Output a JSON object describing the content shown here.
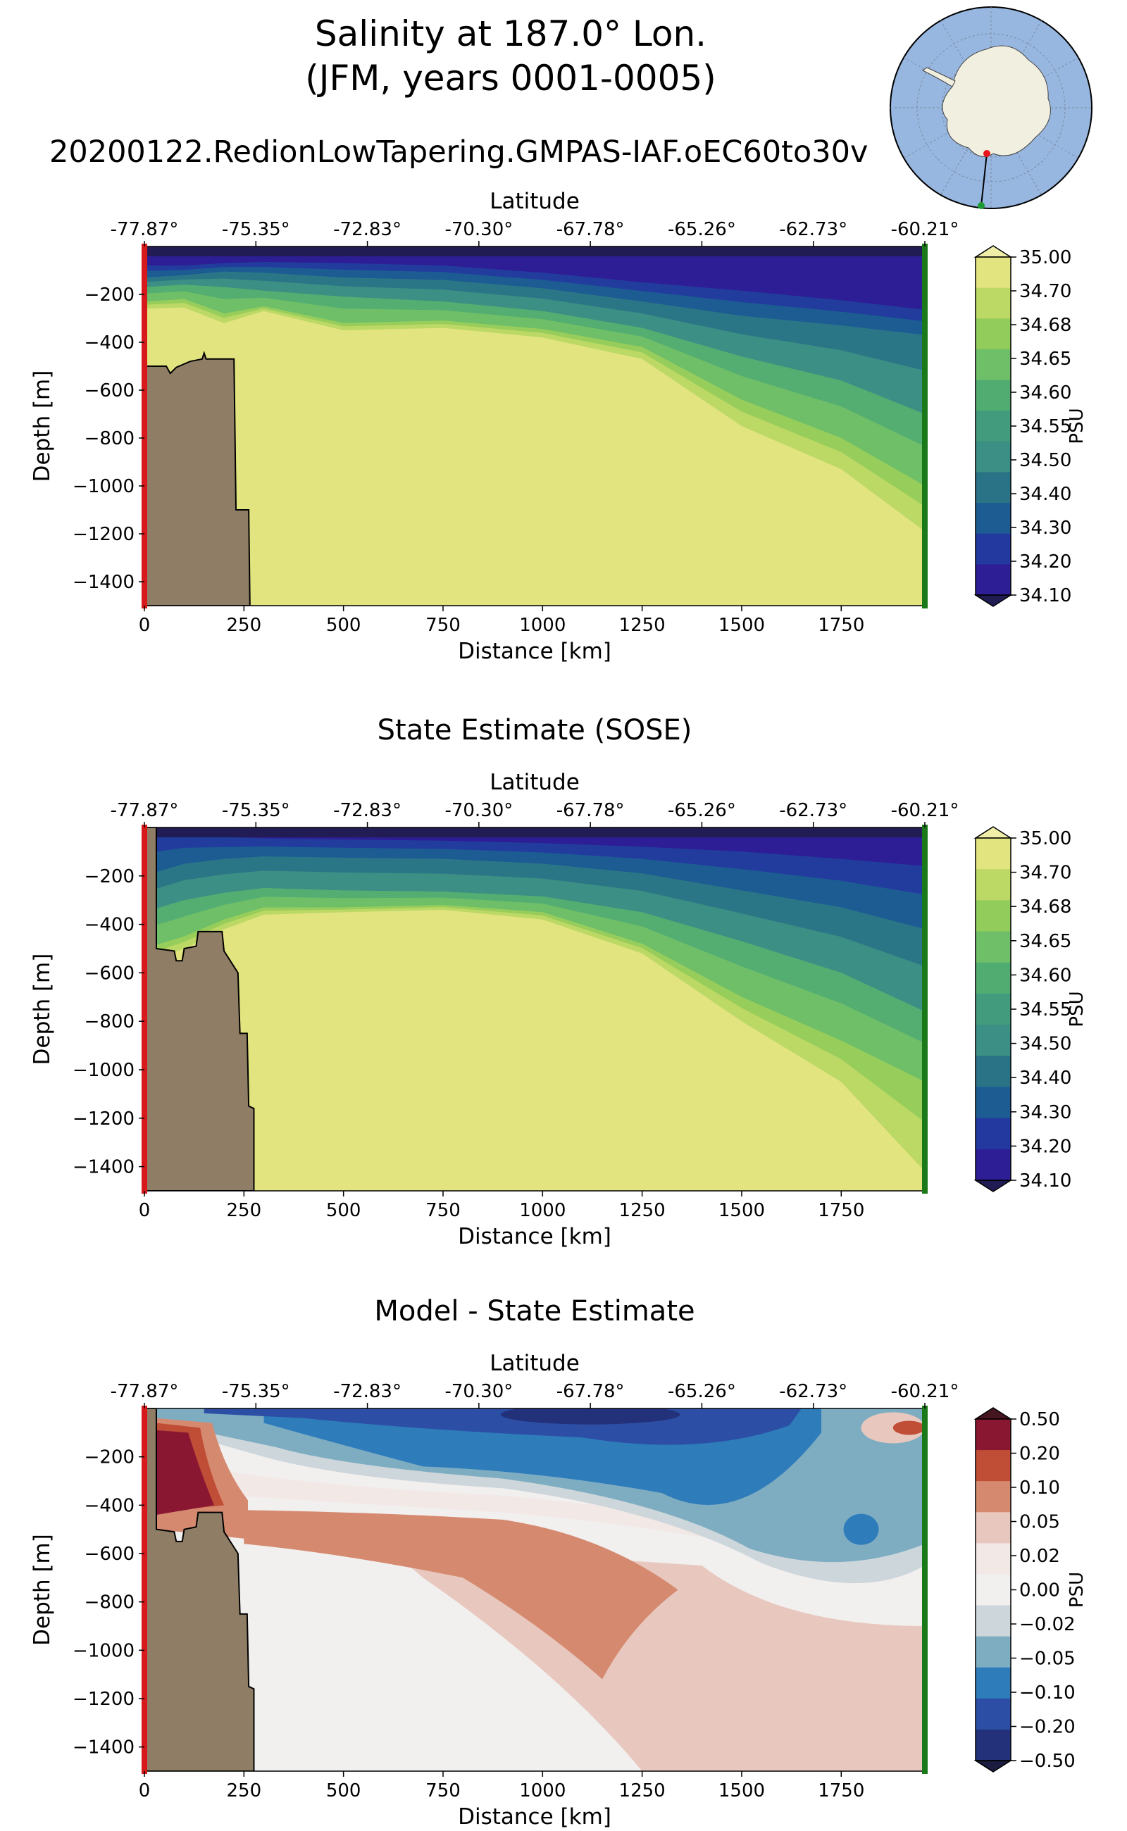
{
  "figure": {
    "title_line1": "Salinity at 187.0° Lon.",
    "title_line2": "(JFM, years 0001-0005)",
    "subtitle": "20200122.RedionLowTapering.GMPAS-IAF.oEC60to30v"
  },
  "colors": {
    "land": "#8f7e65",
    "section_start_marker": "#d7191c",
    "section_end_marker": "#1a7a1a",
    "globe_ocean": "#98b7e0",
    "globe_land": "#f1efe0",
    "transect_start_dot": "#e8141c",
    "transect_end_dot": "#1a9a30"
  },
  "chart_data": [
    {
      "type": "heatmap",
      "title": "",
      "xlabel": "Distance [km]",
      "ylabel": "Depth [m]",
      "top_axis_label": "Latitude",
      "xlim": [
        0,
        1960
      ],
      "ylim": [
        -1500,
        0
      ],
      "x_ticks": [
        "0",
        "250",
        "500",
        "750",
        "1000",
        "1250",
        "1500",
        "1750"
      ],
      "y_ticks": [
        "−200",
        "−400",
        "−600",
        "−800",
        "−1000",
        "−1200",
        "−1400"
      ],
      "lat_ticks": [
        "-77.87°",
        "-75.35°",
        "-72.83°",
        "-70.30°",
        "-67.78°",
        "-65.26°",
        "-62.73°",
        "-60.21°"
      ],
      "colorbar_label": "PSU",
      "colorbar_ticks": [
        "35.00",
        "34.70",
        "34.68",
        "34.65",
        "34.60",
        "34.55",
        "34.50",
        "34.40",
        "34.30",
        "34.20",
        "34.10"
      ],
      "colorbar_colors": [
        "#e2e480",
        "#bcd865",
        "#92cc5a",
        "#6ebf68",
        "#51ac72",
        "#419b7c",
        "#3b8f84",
        "#2a7386",
        "#1c5c93",
        "#2439a0",
        "#2d1e96"
      ],
      "colorbar_over": "#f0eda8",
      "colorbar_under": "#221c55",
      "colorbar_extend": "both",
      "bathymetry": [
        [
          0,
          -500
        ],
        [
          55,
          -500
        ],
        [
          65,
          -530
        ],
        [
          80,
          -505
        ],
        [
          115,
          -480
        ],
        [
          145,
          -470
        ],
        [
          150,
          -445
        ],
        [
          155,
          -470
        ],
        [
          225,
          -470
        ],
        [
          230,
          -1100
        ],
        [
          262,
          -1100
        ],
        [
          265,
          -1500
        ]
      ],
      "isolines_top_depth": [
        {
          "level": "34.10",
          "x": [
            0,
            100,
            200,
            300,
            500,
            750,
            1000,
            1250,
            1500,
            1750,
            1960
          ],
          "y": [
            -80,
            -80,
            -70,
            -65,
            -70,
            -80,
            -110,
            -150,
            -185,
            -225,
            -265
          ]
        },
        {
          "level": "34.30",
          "x": [
            0,
            100,
            200,
            300,
            500,
            750,
            1000,
            1250,
            1500,
            1750,
            1960
          ],
          "y": [
            -130,
            -120,
            -105,
            -110,
            -130,
            -140,
            -175,
            -230,
            -290,
            -330,
            -370
          ]
        },
        {
          "level": "34.50",
          "x": [
            0,
            100,
            200,
            300,
            500,
            750,
            1000,
            1250,
            1500,
            1750,
            1960
          ],
          "y": [
            -170,
            -160,
            -170,
            -185,
            -210,
            -230,
            -270,
            -340,
            -460,
            -560,
            -700
          ]
        },
        {
          "level": "34.65",
          "x": [
            0,
            100,
            200,
            300,
            500,
            750,
            1000,
            1250,
            1500,
            1750,
            1960
          ],
          "y": [
            -230,
            -220,
            -280,
            -250,
            -320,
            -310,
            -345,
            -420,
            -640,
            -800,
            -1000
          ]
        },
        {
          "level": "34.70",
          "x": [
            0,
            100,
            200,
            300,
            500,
            750,
            1000,
            1250,
            1500,
            1750,
            1960
          ],
          "y": [
            -260,
            -255,
            -320,
            -270,
            -350,
            -340,
            -380,
            -470,
            -750,
            -930,
            -1190
          ]
        }
      ]
    },
    {
      "type": "heatmap",
      "title": "State Estimate (SOSE)",
      "xlabel": "Distance [km]",
      "ylabel": "Depth [m]",
      "top_axis_label": "Latitude",
      "xlim": [
        0,
        1960
      ],
      "ylim": [
        -1500,
        0
      ],
      "x_ticks": [
        "0",
        "250",
        "500",
        "750",
        "1000",
        "1250",
        "1500",
        "1750"
      ],
      "y_ticks": [
        "−200",
        "−400",
        "−600",
        "−800",
        "−1000",
        "−1200",
        "−1400"
      ],
      "lat_ticks": [
        "-77.87°",
        "-75.35°",
        "-72.83°",
        "-70.30°",
        "-67.78°",
        "-65.26°",
        "-62.73°",
        "-60.21°"
      ],
      "colorbar_label": "PSU",
      "colorbar_ticks": [
        "35.00",
        "34.70",
        "34.68",
        "34.65",
        "34.60",
        "34.55",
        "34.50",
        "34.40",
        "34.30",
        "34.20",
        "34.10"
      ],
      "colorbar_colors": [
        "#e2e480",
        "#bcd865",
        "#92cc5a",
        "#6ebf68",
        "#51ac72",
        "#419b7c",
        "#3b8f84",
        "#2a7386",
        "#1c5c93",
        "#2439a0",
        "#2d1e96"
      ],
      "colorbar_over": "#f0eda8",
      "colorbar_under": "#221c55",
      "colorbar_extend": "both",
      "bathymetry": [
        [
          0,
          0
        ],
        [
          30,
          0
        ],
        [
          30,
          -500
        ],
        [
          75,
          -510
        ],
        [
          80,
          -550
        ],
        [
          95,
          -550
        ],
        [
          100,
          -500
        ],
        [
          130,
          -490
        ],
        [
          135,
          -430
        ],
        [
          195,
          -430
        ],
        [
          200,
          -510
        ],
        [
          235,
          -600
        ],
        [
          240,
          -850
        ],
        [
          258,
          -850
        ],
        [
          262,
          -1150
        ],
        [
          275,
          -1160
        ],
        [
          275,
          -1500
        ]
      ],
      "isolines_top_depth": [
        {
          "level": "34.10",
          "x": [
            0,
            100,
            200,
            300,
            500,
            750,
            1000,
            1250,
            1500,
            1750,
            1960
          ],
          "y": [
            -30,
            -30,
            -40,
            -45,
            -50,
            -55,
            -65,
            -80,
            -100,
            -130,
            -160
          ]
        },
        {
          "level": "34.30",
          "x": [
            0,
            100,
            200,
            300,
            500,
            750,
            1000,
            1250,
            1500,
            1750,
            1960
          ],
          "y": [
            -200,
            -150,
            -130,
            -120,
            -125,
            -130,
            -150,
            -190,
            -260,
            -330,
            -420
          ]
        },
        {
          "level": "34.50",
          "x": [
            0,
            100,
            200,
            300,
            500,
            750,
            1000,
            1250,
            1500,
            1750,
            1960
          ],
          "y": [
            -350,
            -300,
            -270,
            -250,
            -260,
            -265,
            -285,
            -350,
            -470,
            -600,
            -760
          ]
        },
        {
          "level": "34.65",
          "x": [
            0,
            100,
            200,
            300,
            500,
            750,
            1000,
            1250,
            1500,
            1750,
            1960
          ],
          "y": [
            -500,
            -450,
            -380,
            -330,
            -330,
            -320,
            -350,
            -480,
            -700,
            -880,
            -1050
          ]
        },
        {
          "level": "34.70",
          "x": [
            0,
            100,
            200,
            300,
            500,
            750,
            1000,
            1250,
            1500,
            1750,
            1960
          ],
          "y": [
            -560,
            -500,
            -420,
            -360,
            -350,
            -340,
            -380,
            -520,
            -800,
            -1050,
            -1420
          ]
        }
      ]
    },
    {
      "type": "heatmap",
      "title": "Model - State Estimate",
      "xlabel": "Distance [km]",
      "ylabel": "Depth [m]",
      "top_axis_label": "Latitude",
      "xlim": [
        0,
        1960
      ],
      "ylim": [
        -1500,
        0
      ],
      "x_ticks": [
        "0",
        "250",
        "500",
        "750",
        "1000",
        "1250",
        "1500",
        "1750"
      ],
      "y_ticks": [
        "−200",
        "−400",
        "−600",
        "−800",
        "−1000",
        "−1200",
        "−1400"
      ],
      "lat_ticks": [
        "-77.87°",
        "-75.35°",
        "-72.83°",
        "-70.30°",
        "-67.78°",
        "-65.26°",
        "-62.73°",
        "-60.21°"
      ],
      "colorbar_label": "PSU",
      "colorbar_ticks": [
        "0.50",
        "0.20",
        "0.10",
        "0.05",
        "0.02",
        "0.00",
        "−0.02",
        "−0.05",
        "−0.10",
        "−0.20",
        "−0.50"
      ],
      "colorbar_colors": [
        "#8a1732",
        "#c04d35",
        "#d58a70",
        "#e8c8be",
        "#f2e8e6",
        "#f2efef",
        "#cdd6db",
        "#7eadc1",
        "#2f7cbb",
        "#2c4fa5",
        "#23307a"
      ],
      "colorbar_over": "#451520",
      "colorbar_under": "#1b1c3f",
      "colorbar_extend": "both",
      "bathymetry": [
        [
          0,
          0
        ],
        [
          30,
          0
        ],
        [
          30,
          -500
        ],
        [
          75,
          -510
        ],
        [
          80,
          -550
        ],
        [
          95,
          -550
        ],
        [
          100,
          -500
        ],
        [
          130,
          -490
        ],
        [
          135,
          -430
        ],
        [
          195,
          -430
        ],
        [
          200,
          -510
        ],
        [
          235,
          -600
        ],
        [
          240,
          -850
        ],
        [
          258,
          -850
        ],
        [
          262,
          -1150
        ],
        [
          275,
          -1160
        ],
        [
          275,
          -1500
        ]
      ]
    }
  ]
}
